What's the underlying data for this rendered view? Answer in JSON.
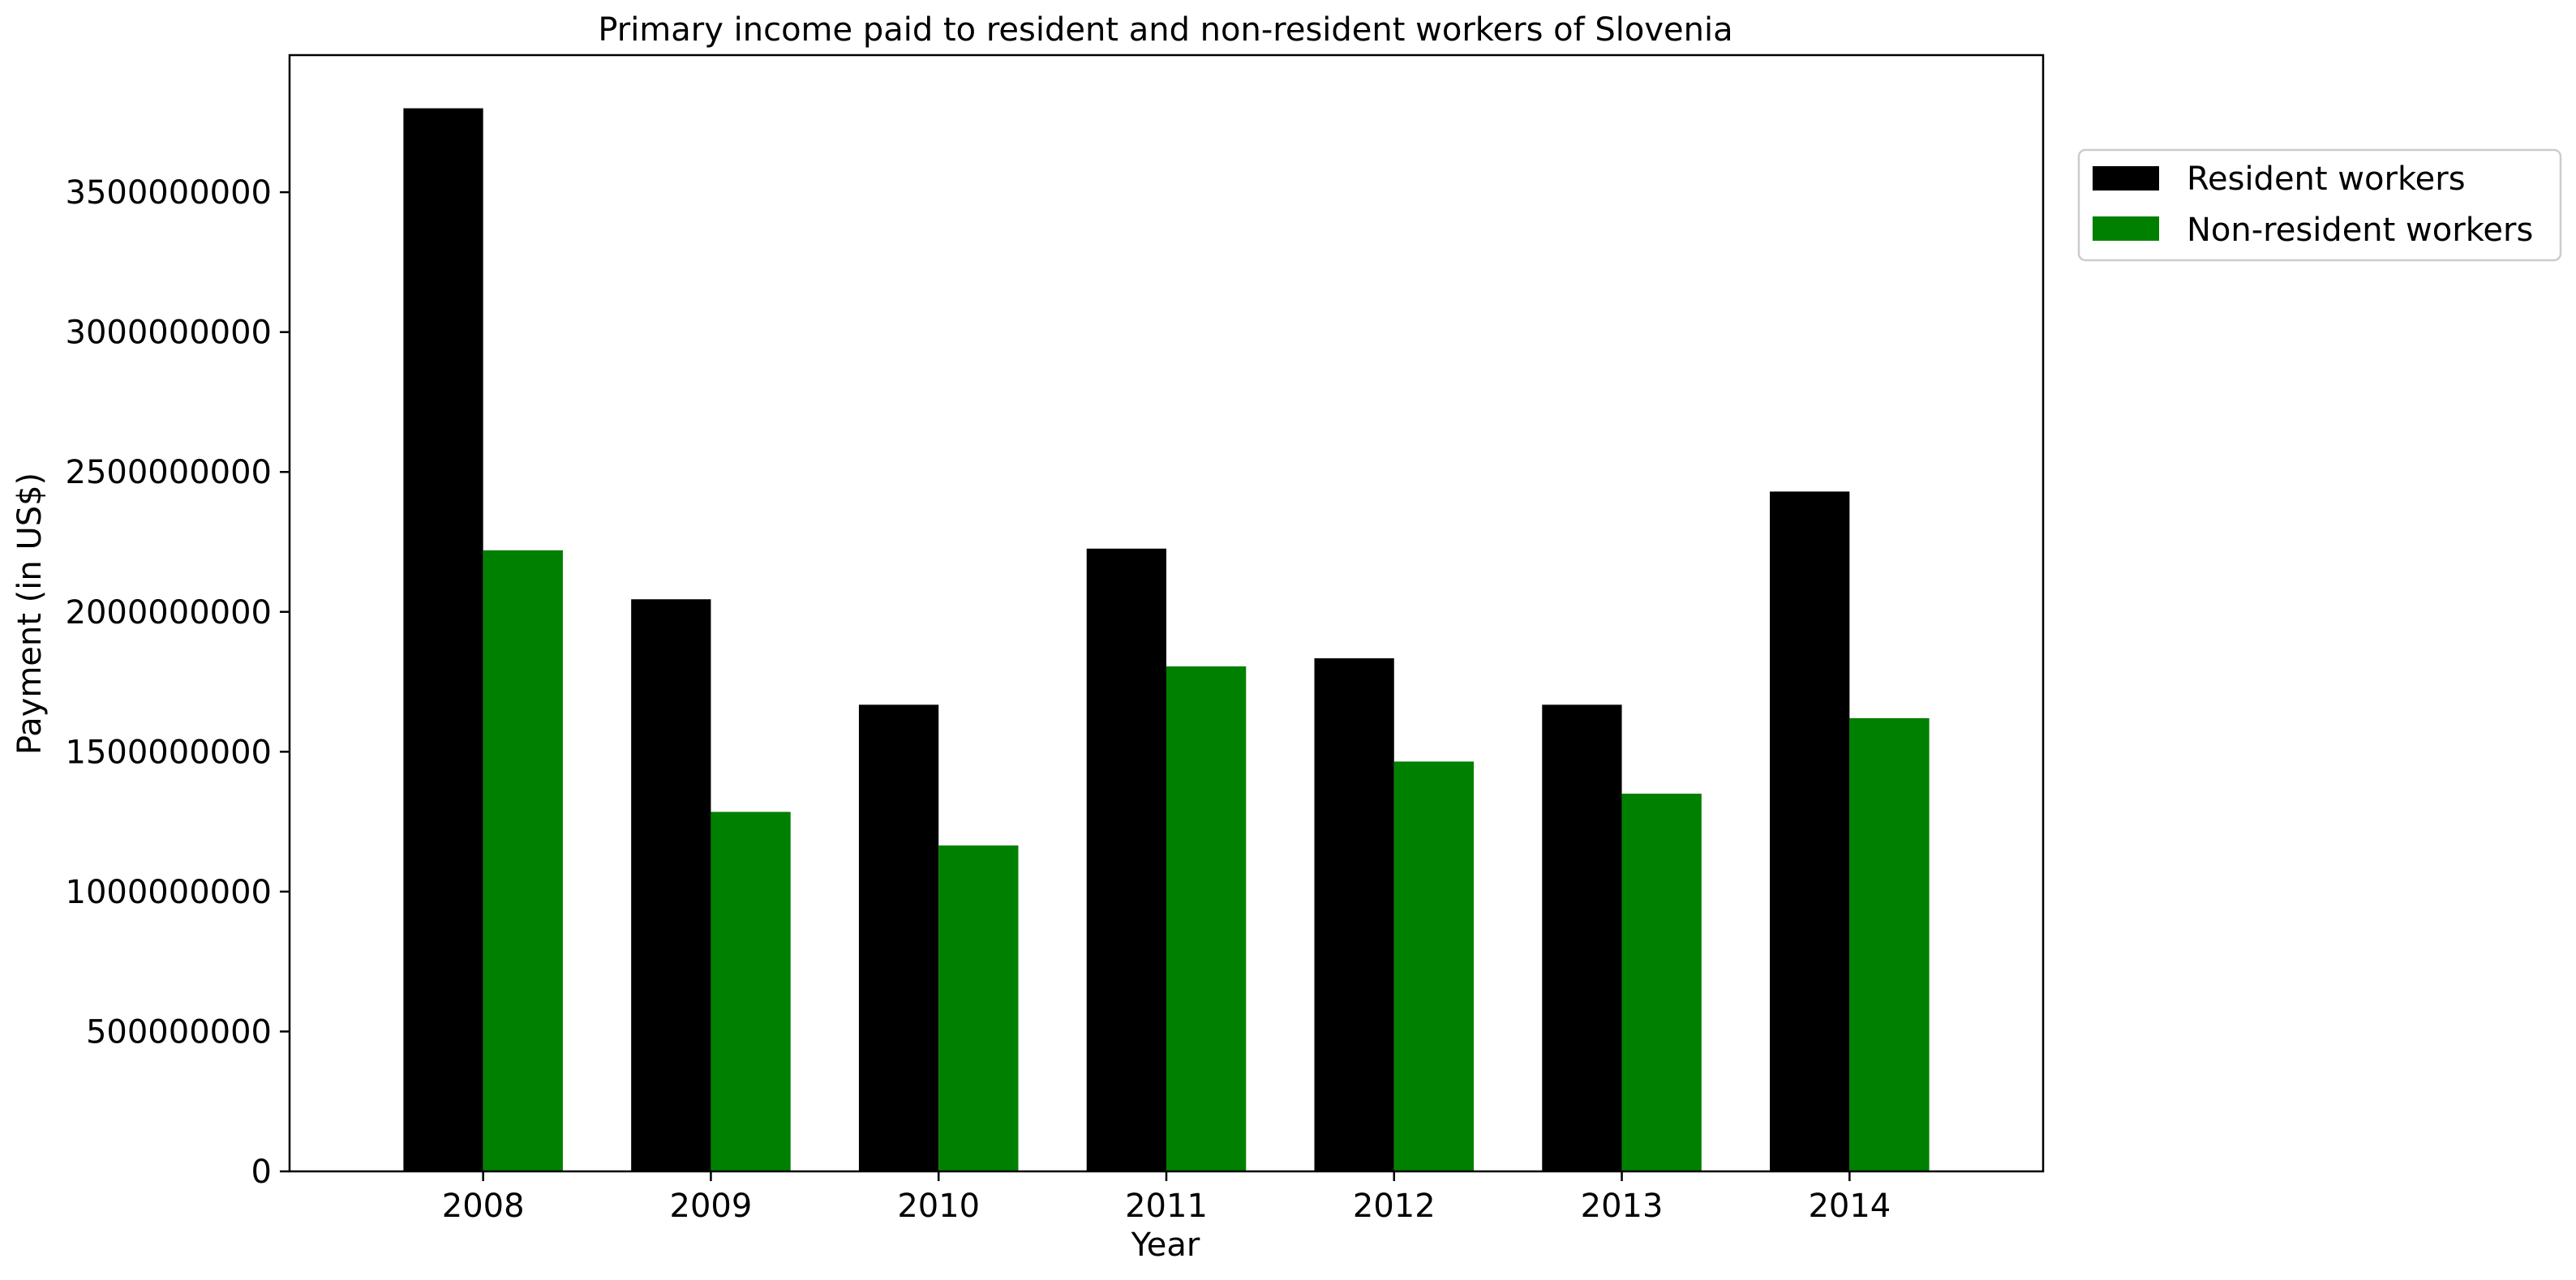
{
  "chart_data": {
    "type": "bar",
    "title": "Primary income paid to resident and non-resident workers of Slovenia",
    "xlabel": "Year",
    "ylabel": "Payment (in US$)",
    "categories": [
      "2008",
      "2009",
      "2010",
      "2011",
      "2012",
      "2013",
      "2014"
    ],
    "series": [
      {
        "name": "Resident workers",
        "color": "#000000",
        "values": [
          3800000000,
          2045000000,
          1668000000,
          2226000000,
          1834000000,
          1668000000,
          2430000000
        ]
      },
      {
        "name": "Non-resident workers",
        "color": "#008000",
        "values": [
          2220000000,
          1285000000,
          1165000000,
          1805000000,
          1465000000,
          1350000000,
          1620000000
        ]
      }
    ],
    "ylim": [
      0,
      3990000000
    ],
    "yticks": [
      0,
      500000000,
      1000000000,
      1500000000,
      2000000000,
      2500000000,
      3000000000,
      3500000000
    ],
    "ytick_labels": [
      "0",
      "500000000",
      "1000000000",
      "1500000000",
      "2000000000",
      "2500000000",
      "3000000000",
      "3500000000"
    ],
    "grid": false,
    "legend_position": "outside-top-right"
  }
}
